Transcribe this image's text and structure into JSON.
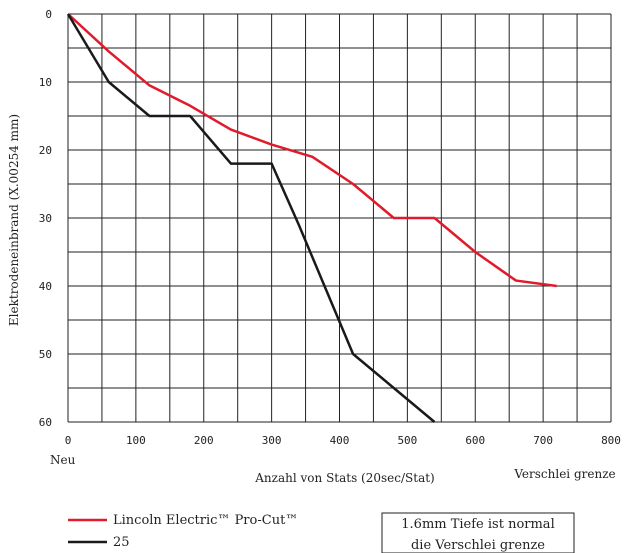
{
  "chart_data": {
    "type": "line",
    "xlabel": "Anzahl von Stats (20sec/Stat)",
    "ylabel": "Elektrodeneinbrand (X.00254 mm)",
    "x_left_label": "Neu",
    "x_right_label": "Verschlei grenze",
    "xlim": [
      0,
      800
    ],
    "ylim": [
      0,
      60
    ],
    "y_inverted": true,
    "x_ticks": [
      0,
      100,
      200,
      300,
      400,
      500,
      600,
      700,
      800
    ],
    "y_ticks": [
      0,
      10,
      20,
      30,
      40,
      50,
      60
    ],
    "grid": true,
    "legend_position": "bottom-left",
    "series": [
      {
        "name": "Lincoln Electric™ Pro-Cut™",
        "color": "#e01b2b",
        "points": [
          [
            0,
            0
          ],
          [
            60,
            5.5
          ],
          [
            120,
            10.5
          ],
          [
            180,
            13.5
          ],
          [
            240,
            17
          ],
          [
            300,
            19.2
          ],
          [
            360,
            21
          ],
          [
            420,
            25
          ],
          [
            480,
            30
          ],
          [
            540,
            30
          ],
          [
            600,
            35
          ],
          [
            660,
            39.2
          ],
          [
            720,
            40
          ]
        ]
      },
      {
        "name": "25",
        "color": "#1a1a1a",
        "points": [
          [
            0,
            0
          ],
          [
            60,
            10
          ],
          [
            120,
            15
          ],
          [
            180,
            15
          ],
          [
            240,
            22
          ],
          [
            300,
            22
          ],
          [
            340,
            31
          ],
          [
            420,
            50
          ],
          [
            480,
            55
          ],
          [
            540,
            60
          ]
        ]
      }
    ],
    "note_lines": [
      "1.6mm Tiefe ist normal",
      "die Verschlei grenze"
    ]
  }
}
